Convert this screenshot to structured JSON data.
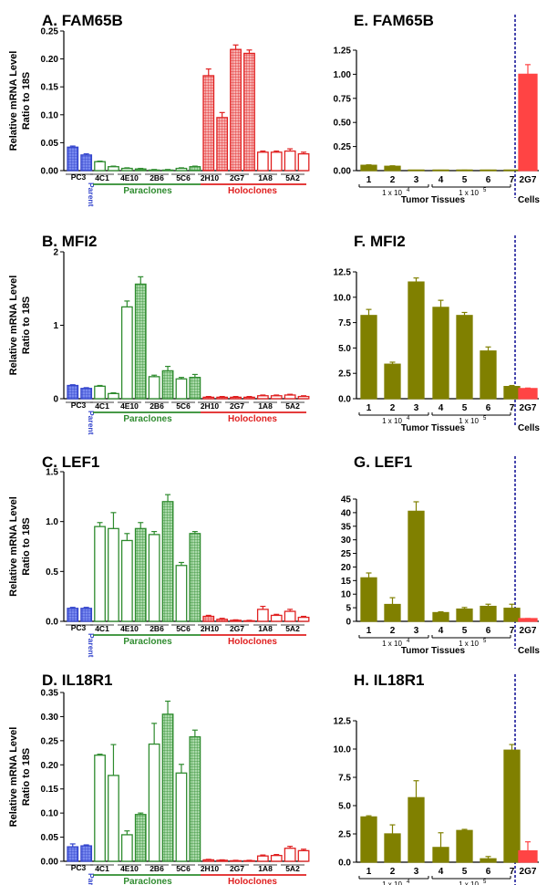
{
  "figure": {
    "ylabel_line1": "Relative mRNA Level",
    "ylabel_line2": "Ratio to 18S",
    "colors": {
      "blue": "#3344cc",
      "green": "#2e8b2e",
      "red": "#e02020",
      "olive": "#808000",
      "cellred": "#ff4444",
      "divider": "#1a1a99"
    }
  },
  "left_groups": {
    "pc3": "PC3",
    "parent": "Parent",
    "paraclones": "Paraclones",
    "holoclones": "Holoclones",
    "paraclone_labels": [
      "4C1",
      "4E10",
      "2B6",
      "5C6"
    ],
    "holoclone_labels": [
      "2H10",
      "2G7",
      "1A8",
      "5A2"
    ]
  },
  "right_groups": {
    "tissue_numbers": [
      "1",
      "2",
      "3",
      "4",
      "5",
      "6",
      "7"
    ],
    "dose1": "1 x 10",
    "dose2": "1 x 10",
    "dose1_exp": "4",
    "dose2_exp": "5",
    "tumor_tissues": "Tumor Tissues",
    "cell_label": "2G7",
    "cells": "Cells"
  },
  "chart_data": [
    {
      "type": "bar",
      "panel": "A",
      "title": "A. FAM65B",
      "ylim": [
        0,
        0.25
      ],
      "yticks": [
        "0.00",
        "0.05",
        "0.10",
        "0.15",
        "0.20",
        "0.25"
      ],
      "values": [
        0.042,
        0.028,
        0.016,
        0.007,
        0.004,
        0.003,
        0.001,
        0.001,
        0.004,
        0.007,
        0.17,
        0.095,
        0.217,
        0.21,
        0.033,
        0.033,
        0.035,
        0.03
      ],
      "errors": [
        0.002,
        0.002,
        0.001,
        0.001,
        0.001,
        0.001,
        0.001,
        0.001,
        0.001,
        0.001,
        0.012,
        0.009,
        0.008,
        0.006,
        0.002,
        0.002,
        0.004,
        0.003
      ]
    },
    {
      "type": "bar",
      "panel": "B",
      "title": "B. MFI2",
      "ylim": [
        0,
        2
      ],
      "yticks": [
        "0",
        "1",
        "2"
      ],
      "values": [
        0.18,
        0.14,
        0.17,
        0.07,
        1.25,
        1.56,
        0.3,
        0.38,
        0.27,
        0.29,
        0.02,
        0.02,
        0.02,
        0.02,
        0.04,
        0.04,
        0.05,
        0.03
      ],
      "errors": [
        0.01,
        0.01,
        0.01,
        0.01,
        0.08,
        0.1,
        0.02,
        0.06,
        0.02,
        0.04,
        0.01,
        0.01,
        0.01,
        0.01,
        0.01,
        0.01,
        0.01,
        0.01
      ]
    },
    {
      "type": "bar",
      "panel": "C",
      "title": "C. LEF1",
      "ylim": [
        0,
        1.5
      ],
      "yticks": [
        "0.0",
        "0.5",
        "1.0",
        "1.5"
      ],
      "values": [
        0.13,
        0.13,
        0.95,
        0.93,
        0.81,
        0.93,
        0.87,
        1.2,
        0.56,
        0.88,
        0.05,
        0.02,
        0.01,
        0.005,
        0.12,
        0.06,
        0.1,
        0.04
      ],
      "errors": [
        0.01,
        0.01,
        0.04,
        0.16,
        0.07,
        0.06,
        0.03,
        0.07,
        0.03,
        0.02,
        0.01,
        0.01,
        0.005,
        0.005,
        0.03,
        0.01,
        0.02,
        0.01
      ]
    },
    {
      "type": "bar",
      "panel": "D",
      "title": "D. IL18R1",
      "ylim": [
        0,
        0.35
      ],
      "yticks": [
        "0.00",
        "0.05",
        "0.10",
        "0.15",
        "0.20",
        "0.25",
        "0.30",
        "0.35"
      ],
      "values": [
        0.03,
        0.032,
        0.22,
        0.178,
        0.055,
        0.097,
        0.243,
        0.305,
        0.183,
        0.258,
        0.003,
        0.002,
        0.001,
        0.001,
        0.011,
        0.012,
        0.027,
        0.022
      ],
      "errors": [
        0.006,
        0.002,
        0.002,
        0.064,
        0.008,
        0.003,
        0.043,
        0.027,
        0.018,
        0.014,
        0.001,
        0.001,
        0.001,
        0.001,
        0.002,
        0.002,
        0.004,
        0.003
      ]
    },
    {
      "type": "bar",
      "panel": "E",
      "title": "E. FAM65B",
      "ylim": [
        0,
        1.25
      ],
      "yticks": [
        "0.00",
        "0.25",
        "0.50",
        "0.75",
        "1.00",
        "1.25"
      ],
      "values": [
        0.055,
        0.045,
        0.002,
        0.003,
        0.004,
        0.003,
        0.002,
        1.0
      ],
      "errors": [
        0.005,
        0.005,
        0.001,
        0.001,
        0.001,
        0.001,
        0.001,
        0.1
      ]
    },
    {
      "type": "bar",
      "panel": "F",
      "title": "F. MFI2",
      "ylim": [
        0,
        12.5
      ],
      "yticks": [
        "0.0",
        "2.5",
        "5.0",
        "7.5",
        "10.0",
        "12.5"
      ],
      "values": [
        8.2,
        3.4,
        11.5,
        9.0,
        8.2,
        4.7,
        1.2,
        1.0
      ],
      "errors": [
        0.6,
        0.2,
        0.4,
        0.7,
        0.3,
        0.4,
        0.1,
        0.05
      ]
    },
    {
      "type": "bar",
      "panel": "G",
      "title": "G. LEF1",
      "ylim": [
        0,
        45
      ],
      "yticks": [
        "0",
        "5",
        "10",
        "15",
        "20",
        "25",
        "30",
        "35",
        "40",
        "45"
      ],
      "values": [
        16.0,
        6.2,
        40.5,
        3.2,
        4.5,
        5.5,
        4.8,
        1.0
      ],
      "errors": [
        1.8,
        2.5,
        3.5,
        0.3,
        0.6,
        0.8,
        1.5,
        0.05
      ]
    },
    {
      "type": "bar",
      "panel": "H",
      "title": "H. IL18R1",
      "ylim": [
        0,
        12.5
      ],
      "yticks": [
        "0.0",
        "2.5",
        "5.0",
        "7.5",
        "10.0",
        "12.5"
      ],
      "values": [
        4.0,
        2.5,
        5.7,
        1.3,
        2.8,
        0.3,
        9.9,
        1.0
      ],
      "errors": [
        0.1,
        0.8,
        1.5,
        1.3,
        0.1,
        0.2,
        0.5,
        0.8
      ]
    }
  ]
}
